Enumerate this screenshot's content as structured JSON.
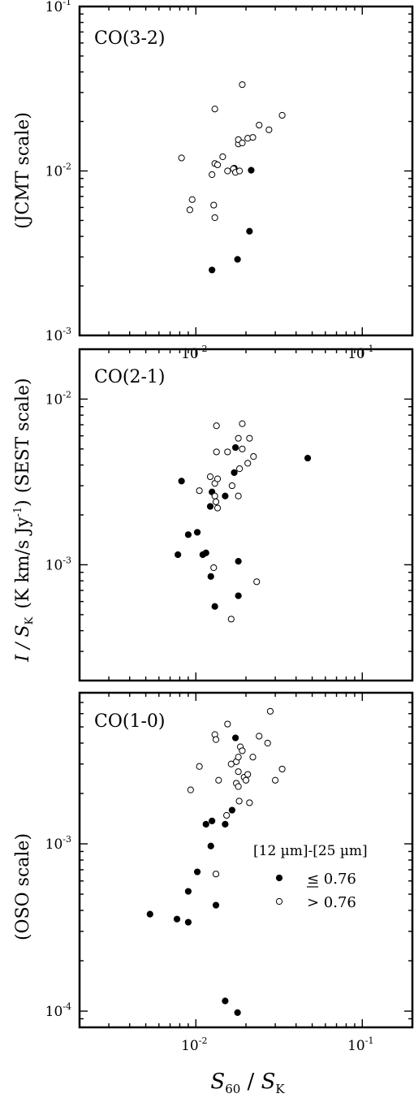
{
  "figure": {
    "ylabel_main": "I / S",
    "ylabel_main_sub": "K",
    "ylabel_units": "(K km/s Jy",
    "ylabel_units_sup": "-1",
    "ylabel_units_close": ")",
    "ylabel_top_scale": "(JCMT scale)",
    "ylabel_mid_scale": "(SEST scale)",
    "ylabel_bot_scale": "(OSO scale)",
    "xlabel_num": "S",
    "xlabel_num_sub": "60",
    "xlabel_sep": " / ",
    "xlabel_den": "S",
    "xlabel_den_sub": "K"
  },
  "legend": {
    "title": "[12 µm]-[25 µm]",
    "filled_label": "≤ 0.76",
    "open_label": "> 0.76"
  },
  "chart_data": [
    {
      "type": "scatter",
      "title": "CO(3-2)",
      "xscale": "log",
      "yscale": "log",
      "xlim": [
        0.002,
        0.2
      ],
      "ylim": [
        0.001,
        0.1
      ],
      "xticks": [
        {
          "base": "10",
          "exp": "-2"
        },
        {
          "base": "10",
          "exp": "-1"
        }
      ],
      "yticks": [
        {
          "base": "10",
          "exp": "-3"
        },
        {
          "base": "10",
          "exp": "-2"
        },
        {
          "base": "10",
          "exp": "-1"
        }
      ],
      "series": [
        {
          "marker": "filled",
          "points": [
            [
              0.0125,
              0.0025
            ],
            [
              0.0178,
              0.0029
            ],
            [
              0.021,
              0.0043
            ],
            [
              0.0215,
              0.0101
            ],
            [
              0.017,
              0.0104
            ]
          ]
        },
        {
          "marker": "open",
          "points": [
            [
              0.0082,
              0.012
            ],
            [
              0.0092,
              0.0058
            ],
            [
              0.0095,
              0.0067
            ],
            [
              0.0125,
              0.0095
            ],
            [
              0.0128,
              0.0062
            ],
            [
              0.013,
              0.0052
            ],
            [
              0.013,
              0.0111
            ],
            [
              0.0135,
              0.0109
            ],
            [
              0.013,
              0.0238
            ],
            [
              0.0145,
              0.0122
            ],
            [
              0.0155,
              0.01
            ],
            [
              0.0168,
              0.0103
            ],
            [
              0.0173,
              0.0098
            ],
            [
              0.018,
              0.0146
            ],
            [
              0.018,
              0.0155
            ],
            [
              0.0183,
              0.01
            ],
            [
              0.019,
              0.0148
            ],
            [
              0.019,
              0.0335
            ],
            [
              0.0205,
              0.0158
            ],
            [
              0.022,
              0.016
            ],
            [
              0.024,
              0.019
            ],
            [
              0.0275,
              0.0178
            ],
            [
              0.033,
              0.0218
            ]
          ]
        }
      ]
    },
    {
      "type": "scatter",
      "title": "CO(2-1)",
      "xscale": "log",
      "yscale": "log",
      "xlim": [
        0.002,
        0.2
      ],
      "ylim": [
        0.0002,
        0.02
      ],
      "xticks": [],
      "yticks": [
        {
          "base": "10",
          "exp": "-3"
        },
        {
          "base": "10",
          "exp": "-2"
        }
      ],
      "series": [
        {
          "marker": "filled",
          "points": [
            [
              0.0078,
              0.00115
            ],
            [
              0.0082,
              0.0032
            ],
            [
              0.009,
              0.00152
            ],
            [
              0.0102,
              0.00157
            ],
            [
              0.011,
              0.00115
            ],
            [
              0.0115,
              0.00118
            ],
            [
              0.0122,
              0.00225
            ],
            [
              0.0123,
              0.00085
            ],
            [
              0.0125,
              0.00275
            ],
            [
              0.013,
              0.00056
            ],
            [
              0.015,
              0.0026
            ],
            [
              0.017,
              0.0036
            ],
            [
              0.0173,
              0.0051
            ],
            [
              0.018,
              0.00065
            ],
            [
              0.018,
              0.00105
            ],
            [
              0.047,
              0.0044
            ]
          ]
        },
        {
          "marker": "open",
          "points": [
            [
              0.0105,
              0.0028
            ],
            [
              0.0122,
              0.0034
            ],
            [
              0.0128,
              0.00096
            ],
            [
              0.013,
              0.0031
            ],
            [
              0.013,
              0.0026
            ],
            [
              0.0132,
              0.0024
            ],
            [
              0.0133,
              0.0069
            ],
            [
              0.0133,
              0.0048
            ],
            [
              0.0135,
              0.0033
            ],
            [
              0.0135,
              0.0022
            ],
            [
              0.0155,
              0.0048
            ],
            [
              0.0163,
              0.00047
            ],
            [
              0.0165,
              0.003
            ],
            [
              0.018,
              0.0058
            ],
            [
              0.018,
              0.0026
            ],
            [
              0.0183,
              0.0038
            ],
            [
              0.019,
              0.0071
            ],
            [
              0.019,
              0.005
            ],
            [
              0.0205,
              0.0041
            ],
            [
              0.021,
              0.0058
            ],
            [
              0.0222,
              0.0045
            ],
            [
              0.0232,
              0.00079
            ]
          ]
        }
      ]
    },
    {
      "type": "scatter",
      "title": "CO(1-0)",
      "xscale": "log",
      "yscale": "log",
      "xlim": [
        0.002,
        0.2
      ],
      "ylim": [
        8e-05,
        0.008
      ],
      "xticks": [
        {
          "base": "10",
          "exp": "-2"
        },
        {
          "base": "10",
          "exp": "-1"
        }
      ],
      "yticks": [
        {
          "base": "10",
          "exp": "-4"
        },
        {
          "base": "10",
          "exp": "-3"
        }
      ],
      "series": [
        {
          "marker": "filled",
          "points": [
            [
              0.0053,
              0.00038
            ],
            [
              0.0077,
              0.000355
            ],
            [
              0.009,
              0.00052
            ],
            [
              0.009,
              0.00034
            ],
            [
              0.0102,
              0.00068
            ],
            [
              0.0115,
              0.00131
            ],
            [
              0.0123,
              0.00097
            ],
            [
              0.0125,
              0.00137
            ],
            [
              0.0132,
              0.00043
            ],
            [
              0.015,
              0.000115
            ],
            [
              0.015,
              0.00131
            ],
            [
              0.0165,
              0.00159
            ],
            [
              0.0173,
              0.0043
            ],
            [
              0.0178,
              9.8e-05
            ]
          ]
        },
        {
          "marker": "open",
          "points": [
            [
              0.0093,
              0.0021
            ],
            [
              0.0105,
              0.0029
            ],
            [
              0.013,
              0.0045
            ],
            [
              0.0132,
              0.0042
            ],
            [
              0.0132,
              0.00066
            ],
            [
              0.0137,
              0.0024
            ],
            [
              0.0153,
              0.00148
            ],
            [
              0.0155,
              0.0052
            ],
            [
              0.0163,
              0.003
            ],
            [
              0.0175,
              0.0031
            ],
            [
              0.0175,
              0.0023
            ],
            [
              0.018,
              0.0033
            ],
            [
              0.018,
              0.0027
            ],
            [
              0.018,
              0.0022
            ],
            [
              0.0182,
              0.0018
            ],
            [
              0.0185,
              0.0038
            ],
            [
              0.019,
              0.0036
            ],
            [
              0.0195,
              0.0025
            ],
            [
              0.02,
              0.0024
            ],
            [
              0.0205,
              0.0026
            ],
            [
              0.021,
              0.00176
            ],
            [
              0.022,
              0.0033
            ],
            [
              0.024,
              0.0044
            ],
            [
              0.027,
              0.004
            ],
            [
              0.028,
              0.0062
            ],
            [
              0.03,
              0.0024
            ],
            [
              0.033,
              0.0028
            ]
          ]
        }
      ]
    }
  ]
}
